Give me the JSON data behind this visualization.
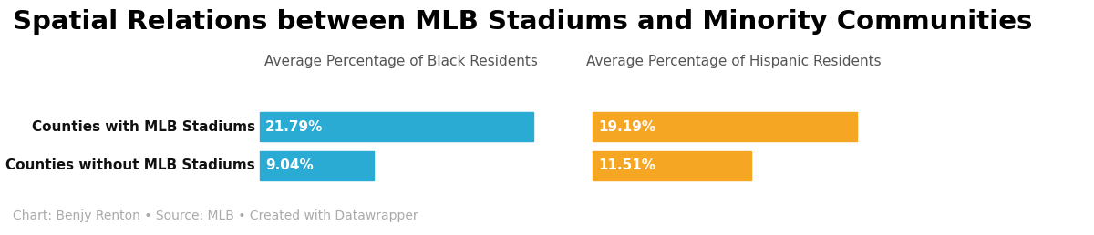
{
  "title": "Spatial Relations between MLB Stadiums and Minority Communities",
  "title_fontsize": 21,
  "title_fontweight": "bold",
  "categories": [
    "Counties with MLB Stadiums",
    "Counties without MLB Stadiums"
  ],
  "black_values": [
    21.79,
    9.04
  ],
  "hispanic_values": [
    19.19,
    11.51
  ],
  "black_label": "Average Percentage of Black Residents",
  "hispanic_label": "Average Percentage of Hispanic Residents",
  "black_color": "#29ABD4",
  "hispanic_color": "#F5A623",
  "bar_text_color": "#ffffff",
  "bar_text_fontsize": 11,
  "footnote": "Chart: Benjy Renton • Source: MLB • Created with Datawrapper",
  "footnote_color": "#aaaaaa",
  "footnote_fontsize": 10,
  "background_color": "#ffffff",
  "black_max": 22.5,
  "hispanic_max": 20.5,
  "row_labels_fontsize": 11,
  "col_header_fontsize": 11,
  "col_header_color": "#555555",
  "row_label_bold": true
}
